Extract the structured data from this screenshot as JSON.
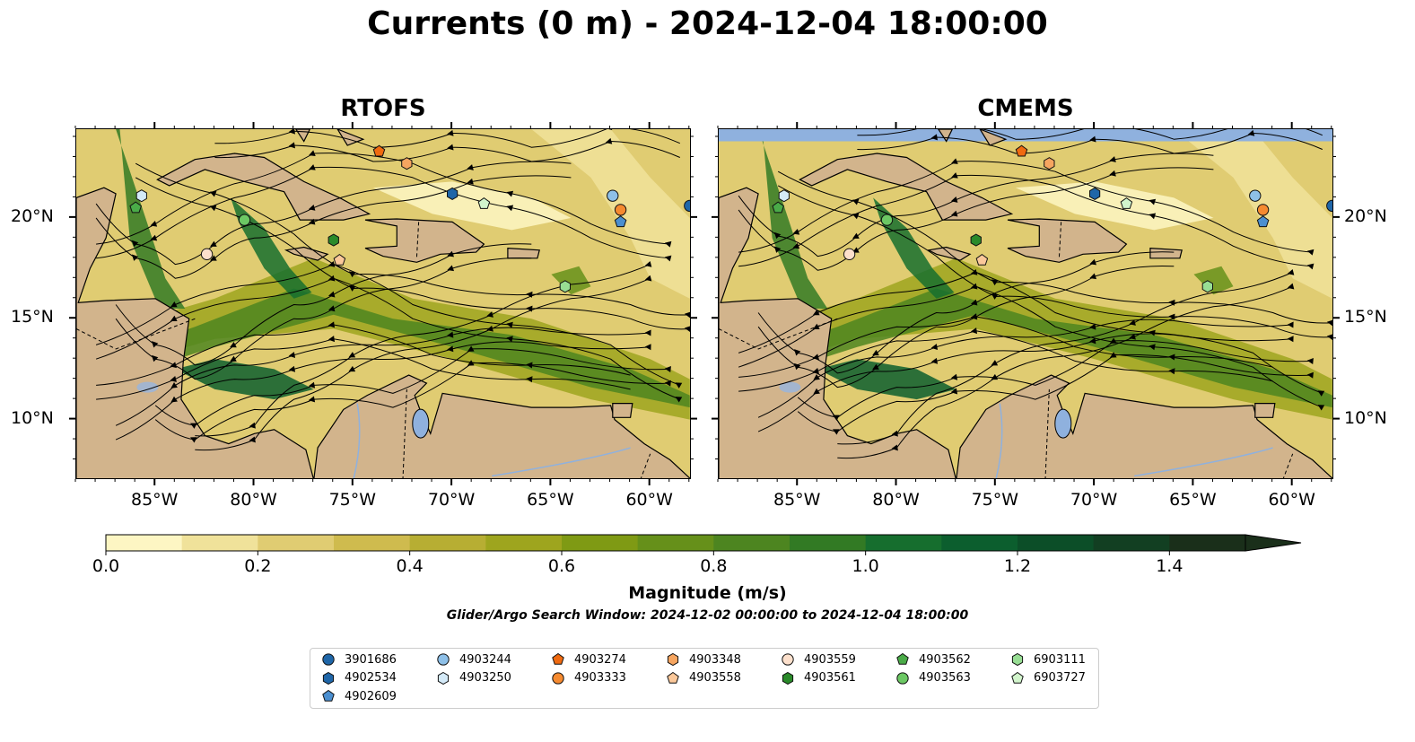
{
  "title": "Currents (0 m) - 2024-12-04 18:00:00",
  "panels": [
    {
      "title": "RTOFS"
    },
    {
      "title": "CMEMS"
    }
  ],
  "lon_ticks": [
    "85°W",
    "80°W",
    "75°W",
    "70°W",
    "65°W",
    "60°W"
  ],
  "lat_ticks": [
    "20°N",
    "15°N",
    "10°N"
  ],
  "colorbar": {
    "label": "Magnitude (m/s)",
    "tick_labels": [
      "0.0",
      "0.2",
      "0.4",
      "0.6",
      "0.8",
      "1.0",
      "1.2",
      "1.4"
    ],
    "colors": [
      "#fdf6c3",
      "#f0e29a",
      "#e0cc72",
      "#cfbb4e",
      "#b7ae33",
      "#9ea51e",
      "#7f9a14",
      "#66901a",
      "#4d8520",
      "#327a24",
      "#166e2e",
      "#0c5e2e",
      "#0c4e28",
      "#123f22",
      "#1a2f1a"
    ],
    "extend": "max"
  },
  "subtitle": "Glider/Argo Search Window: 2024-12-02 00:00:00 to 2024-12-04 18:00:00",
  "legend": [
    {
      "label": "3901686",
      "marker": "circle",
      "color": "#1f66a8"
    },
    {
      "label": "4902534",
      "marker": "hexagon",
      "color": "#1f66a8"
    },
    {
      "label": "4902609",
      "marker": "pentagon",
      "color": "#4b8fd0"
    },
    {
      "label": "4903244",
      "marker": "circle",
      "color": "#8ec0e8"
    },
    {
      "label": "4903250",
      "marker": "hexagon",
      "color": "#d4eaf8"
    },
    {
      "label": "4903274",
      "marker": "pentagon",
      "color": "#f06a10"
    },
    {
      "label": "4903333",
      "marker": "circle",
      "color": "#f58a30"
    },
    {
      "label": "4903348",
      "marker": "hexagon",
      "color": "#f6a560"
    },
    {
      "label": "4903558",
      "marker": "pentagon",
      "color": "#fbc89a"
    },
    {
      "label": "4903559",
      "marker": "circle",
      "color": "#fde0cc"
    },
    {
      "label": "4903561",
      "marker": "hexagon",
      "color": "#2a8a2a"
    },
    {
      "label": "4903562",
      "marker": "pentagon",
      "color": "#4aab48"
    },
    {
      "label": "4903563",
      "marker": "circle",
      "color": "#6cc864"
    },
    {
      "label": "6903111",
      "marker": "hexagon",
      "color": "#98de94"
    },
    {
      "label": "6903727",
      "marker": "pentagon",
      "color": "#d2f5cc"
    }
  ],
  "floats": [
    {
      "id": "3901686",
      "lon": -58.0,
      "lat": 20.6
    },
    {
      "id": "4902534",
      "lon": -70.0,
      "lat": 21.2
    },
    {
      "id": "4902609",
      "lon": -61.5,
      "lat": 19.8
    },
    {
      "id": "4903244",
      "lon": -61.9,
      "lat": 21.1
    },
    {
      "id": "4903250",
      "lon": -85.7,
      "lat": 21.1
    },
    {
      "id": "4903274",
      "lon": -73.7,
      "lat": 23.3
    },
    {
      "id": "4903333",
      "lon": -61.5,
      "lat": 20.4
    },
    {
      "id": "4903348",
      "lon": -72.3,
      "lat": 22.7
    },
    {
      "id": "4903558",
      "lon": -75.7,
      "lat": 17.9
    },
    {
      "id": "4903559",
      "lon": -82.4,
      "lat": 18.2
    },
    {
      "id": "4903561",
      "lon": -76.0,
      "lat": 18.9
    },
    {
      "id": "4903562",
      "lon": -86.0,
      "lat": 20.5
    },
    {
      "id": "4903563",
      "lon": -80.5,
      "lat": 19.9
    },
    {
      "id": "6903111",
      "lon": -64.3,
      "lat": 16.6
    },
    {
      "id": "6903727",
      "lon": -68.4,
      "lat": 20.7
    }
  ]
}
